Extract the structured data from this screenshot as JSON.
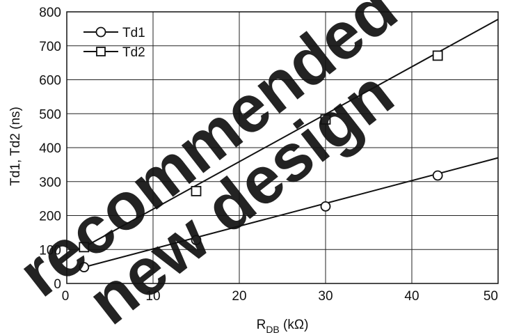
{
  "chart_data": {
    "type": "line",
    "title": "",
    "xlabel": {
      "main": "R",
      "sub": "DB",
      "unit": "  (kΩ)"
    },
    "ylabel": "Td1, Td2  (ns)",
    "xlim": [
      0,
      50
    ],
    "ylim": [
      0,
      800
    ],
    "xticks": [
      0,
      10,
      20,
      30,
      40,
      50
    ],
    "yticks": [
      0,
      100,
      200,
      300,
      400,
      500,
      600,
      700,
      800
    ],
    "grid": true,
    "legend_position": "top-left",
    "series": [
      {
        "name": "Td1",
        "marker": "circle",
        "color": "#111111",
        "line": [
          [
            2,
            48
          ],
          [
            50,
            370
          ]
        ],
        "points": [
          [
            2,
            48
          ],
          [
            15,
            128
          ],
          [
            30,
            227
          ],
          [
            43,
            318
          ]
        ]
      },
      {
        "name": "Td2",
        "marker": "square",
        "color": "#111111",
        "line": [
          [
            2,
            107
          ],
          [
            50,
            778
          ]
        ],
        "points": [
          [
            2,
            107
          ],
          [
            15,
            272
          ],
          [
            30,
            483
          ],
          [
            43,
            671
          ]
        ]
      }
    ]
  },
  "watermark": {
    "line1": "recommended",
    "line2": "new design",
    "color": "#e8102a"
  }
}
